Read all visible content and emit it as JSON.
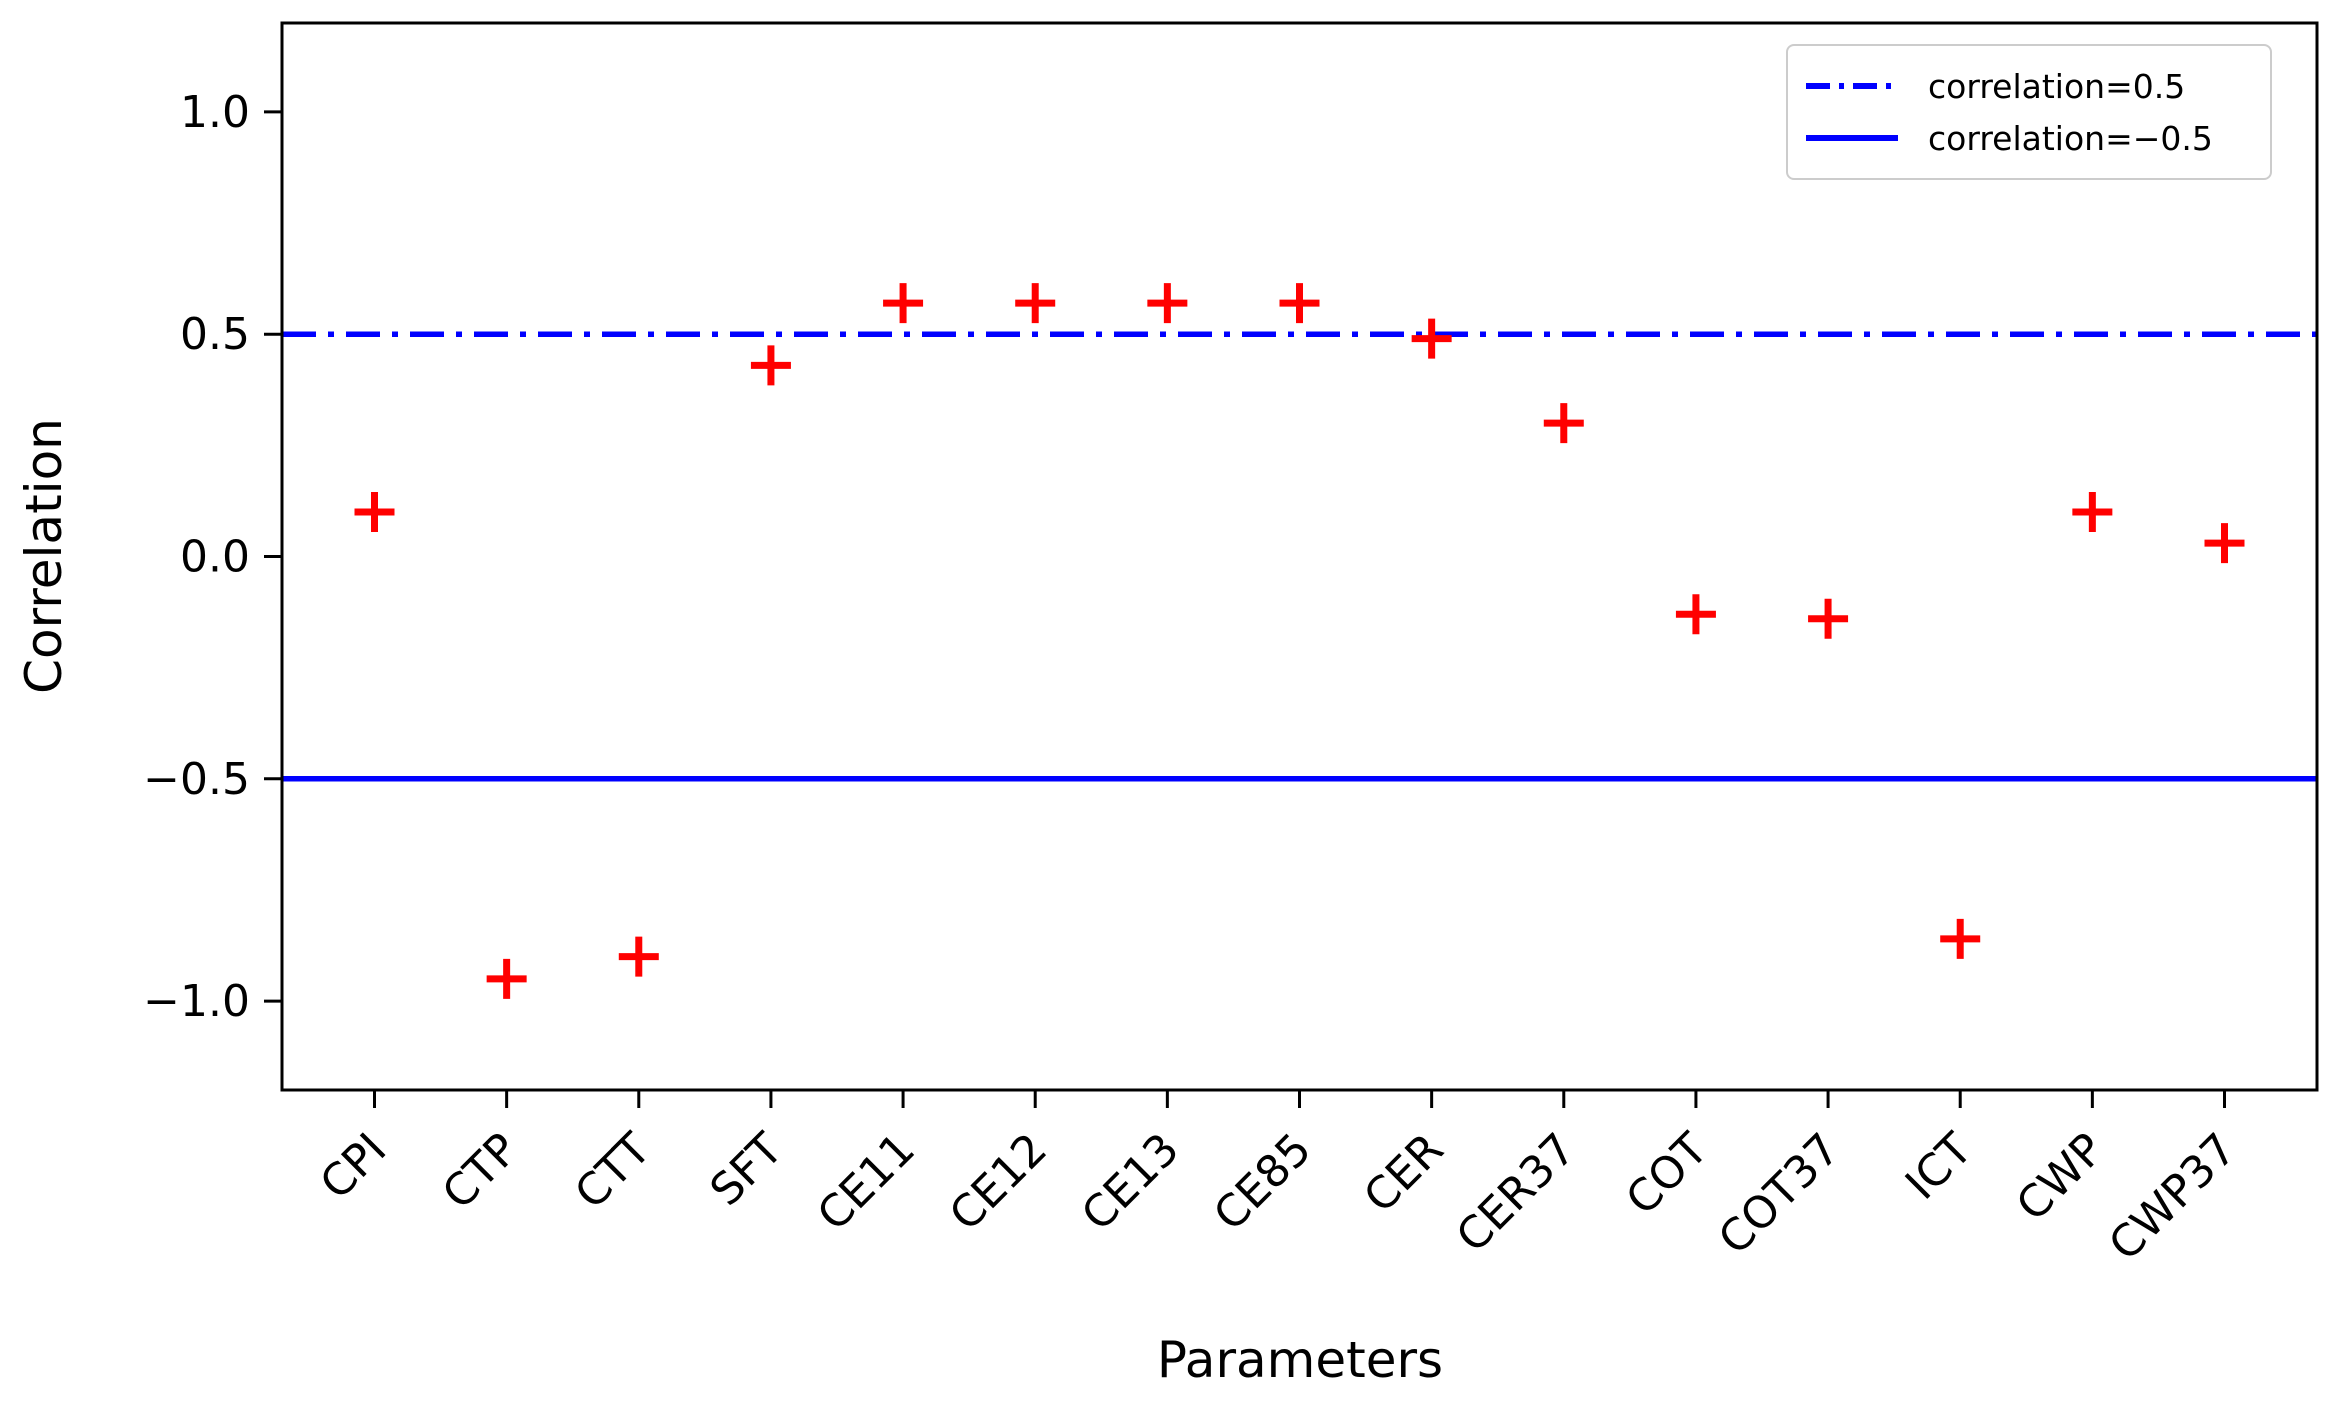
{
  "figure": {
    "background": "#ffffff"
  },
  "axes": {
    "ylabel": "Correlation",
    "xlabel": "Parameters",
    "spine_color": "#000000"
  },
  "chart_data": {
    "type": "scatter",
    "title": "",
    "xlabel": "Parameters",
    "ylabel": "Correlation",
    "categories": [
      "CPI",
      "CTP",
      "CTT",
      "SFT",
      "CE11",
      "CE12",
      "CE13",
      "CE85",
      "CER",
      "CER37",
      "COT",
      "COT37",
      "ICT",
      "CWP",
      "CWP37"
    ],
    "values": [
      0.1,
      -0.95,
      -0.9,
      0.43,
      0.57,
      0.57,
      0.57,
      0.57,
      0.49,
      0.3,
      -0.13,
      -0.14,
      -0.86,
      0.1,
      0.03
    ],
    "marker": {
      "shape": "plus",
      "color": "#ff0000"
    },
    "ref_lines": [
      {
        "value": 0.5,
        "style": "dashdot",
        "color": "#0000ff",
        "label": "correlation=0.5"
      },
      {
        "value": -0.5,
        "style": "solid",
        "color": "#0000ff",
        "label": "correlation=−0.5"
      }
    ],
    "ylim": [
      -1.2,
      1.2
    ],
    "yticks": [
      {
        "value": 1.0,
        "label": "1.0"
      },
      {
        "value": 0.5,
        "label": "0.5"
      },
      {
        "value": 0.0,
        "label": "0.0"
      },
      {
        "value": -0.5,
        "label": "−0.5"
      },
      {
        "value": -1.0,
        "label": "−1.0"
      }
    ],
    "grid": false,
    "legend_position": "upper right"
  }
}
